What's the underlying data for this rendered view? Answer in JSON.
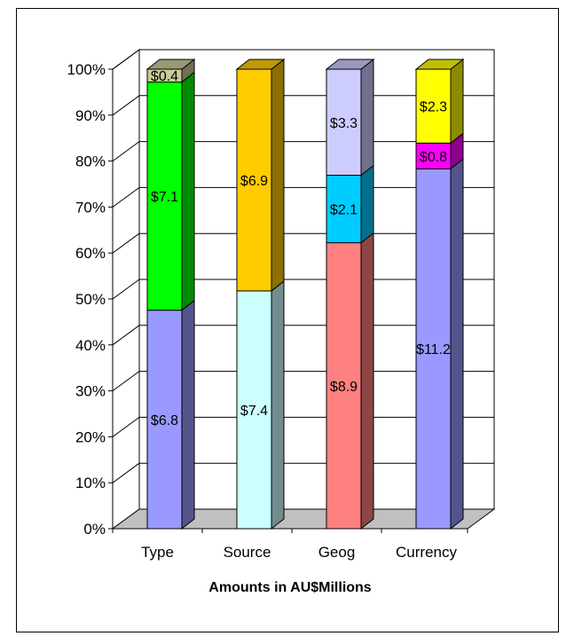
{
  "chart_data": {
    "type": "bar",
    "stacked": true,
    "normalized": true,
    "three_d": true,
    "categories": [
      "Type",
      "Source",
      "Geog",
      "Currency"
    ],
    "stacks": [
      {
        "category": "Type",
        "segments": [
          {
            "value": 6.8,
            "label": "$6.8",
            "color": "#9999ff"
          },
          {
            "value": 7.1,
            "label": "$7.1",
            "color": "#00ff00"
          },
          {
            "value": 0.4,
            "label": "$0.4",
            "color": "#cccc99"
          }
        ]
      },
      {
        "category": "Source",
        "segments": [
          {
            "value": 7.4,
            "label": "$7.4",
            "color": "#ccffff"
          },
          {
            "value": 6.9,
            "label": "$6.9",
            "color": "#ffcc00"
          }
        ]
      },
      {
        "category": "Geog",
        "segments": [
          {
            "value": 8.9,
            "label": "$8.9",
            "color": "#ff8080"
          },
          {
            "value": 2.1,
            "label": "$2.1",
            "color": "#00ccff"
          },
          {
            "value": 3.3,
            "label": "$3.3",
            "color": "#ccccff"
          }
        ]
      },
      {
        "category": "Currency",
        "segments": [
          {
            "value": 11.2,
            "label": "$11.2",
            "color": "#9999ff"
          },
          {
            "value": 0.8,
            "label": "$0.8",
            "color": "#ff00ff"
          },
          {
            "value": 2.3,
            "label": "$2.3",
            "color": "#ffff00"
          }
        ]
      }
    ],
    "y_ticks": [
      "0%",
      "10%",
      "20%",
      "30%",
      "40%",
      "50%",
      "60%",
      "70%",
      "80%",
      "90%",
      "100%"
    ],
    "ylim": [
      0,
      100
    ],
    "grid": true,
    "xlabel": "Amounts in AU$Millions",
    "ylabel": "",
    "title": ""
  }
}
